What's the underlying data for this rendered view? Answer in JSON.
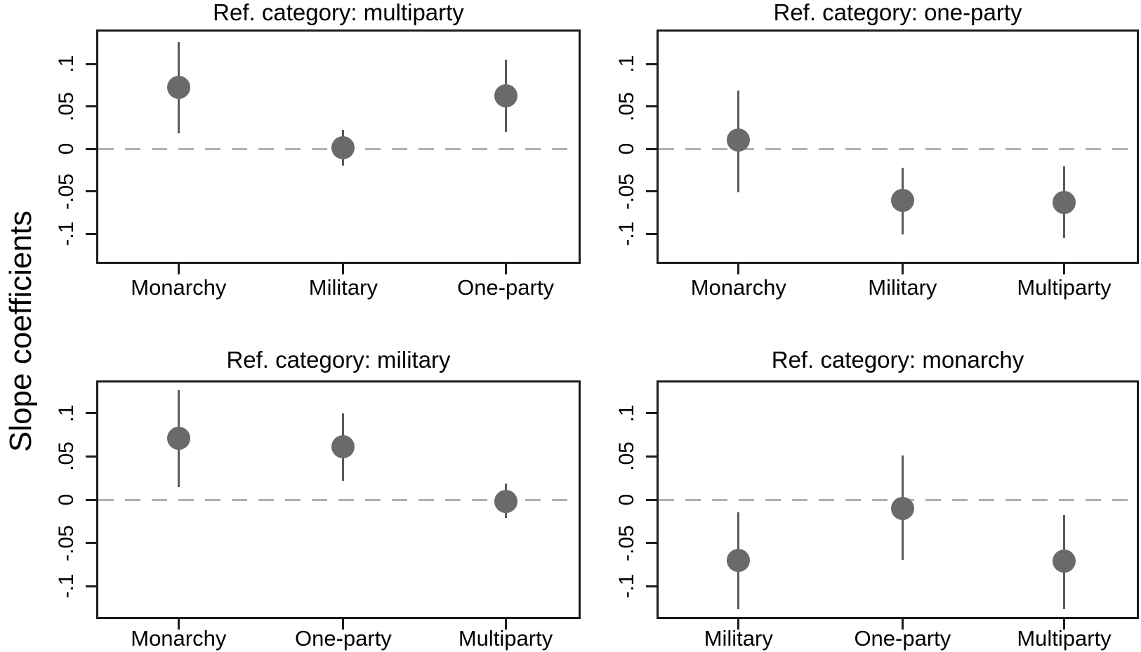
{
  "figure": {
    "ylabel": "Slope coefficients",
    "colors": {
      "marker": "#6a6a6a",
      "ci_line": "#5a5a5a",
      "zero_line": "#b0b0b0",
      "axis": "#1c1c1c",
      "text": "#000000",
      "background": "#ffffff"
    },
    "y_ticks": [
      {
        "value": 0.1,
        "label": ".1"
      },
      {
        "value": 0.05,
        "label": ".05"
      },
      {
        "value": 0,
        "label": "0"
      },
      {
        "value": -0.05,
        "label": "-.05"
      },
      {
        "value": -0.1,
        "label": "-.1"
      }
    ]
  },
  "chart_data": [
    {
      "type": "scatter",
      "title": "Ref. category: multiparty",
      "categories": [
        "Monarchy",
        "Military",
        "One-party"
      ],
      "estimates": [
        0.072,
        0.001,
        0.062
      ],
      "ci_low": [
        0.018,
        -0.02,
        0.02
      ],
      "ci_high": [
        0.126,
        0.022,
        0.105
      ],
      "ylim": [
        -0.1355,
        0.1405
      ],
      "zero_line": true,
      "grid": false
    },
    {
      "type": "scatter",
      "title": "Ref. category: one-party",
      "categories": [
        "Monarchy",
        "Military",
        "Multiparty"
      ],
      "estimates": [
        0.01,
        -0.061,
        -0.063
      ],
      "ci_low": [
        -0.051,
        -0.101,
        -0.105
      ],
      "ci_high": [
        0.069,
        -0.022,
        -0.021
      ],
      "ylim": [
        -0.1355,
        0.1405
      ],
      "zero_line": true,
      "grid": false
    },
    {
      "type": "scatter",
      "title": "Ref. category: military",
      "categories": [
        "Monarchy",
        "One-party",
        "Multiparty"
      ],
      "estimates": [
        0.071,
        0.061,
        -0.002
      ],
      "ci_low": [
        0.015,
        0.022,
        -0.021
      ],
      "ci_high": [
        0.127,
        0.1,
        0.019
      ],
      "ylim": [
        -0.138,
        0.138
      ],
      "zero_line": true,
      "grid": false
    },
    {
      "type": "scatter",
      "title": "Ref. category: monarchy",
      "categories": [
        "Military",
        "One-party",
        "Multiparty"
      ],
      "estimates": [
        -0.07,
        -0.01,
        -0.071
      ],
      "ci_low": [
        -0.127,
        -0.07,
        -0.127
      ],
      "ci_high": [
        -0.015,
        0.051,
        -0.018
      ],
      "ylim": [
        -0.138,
        0.138
      ],
      "zero_line": true,
      "grid": false
    }
  ]
}
